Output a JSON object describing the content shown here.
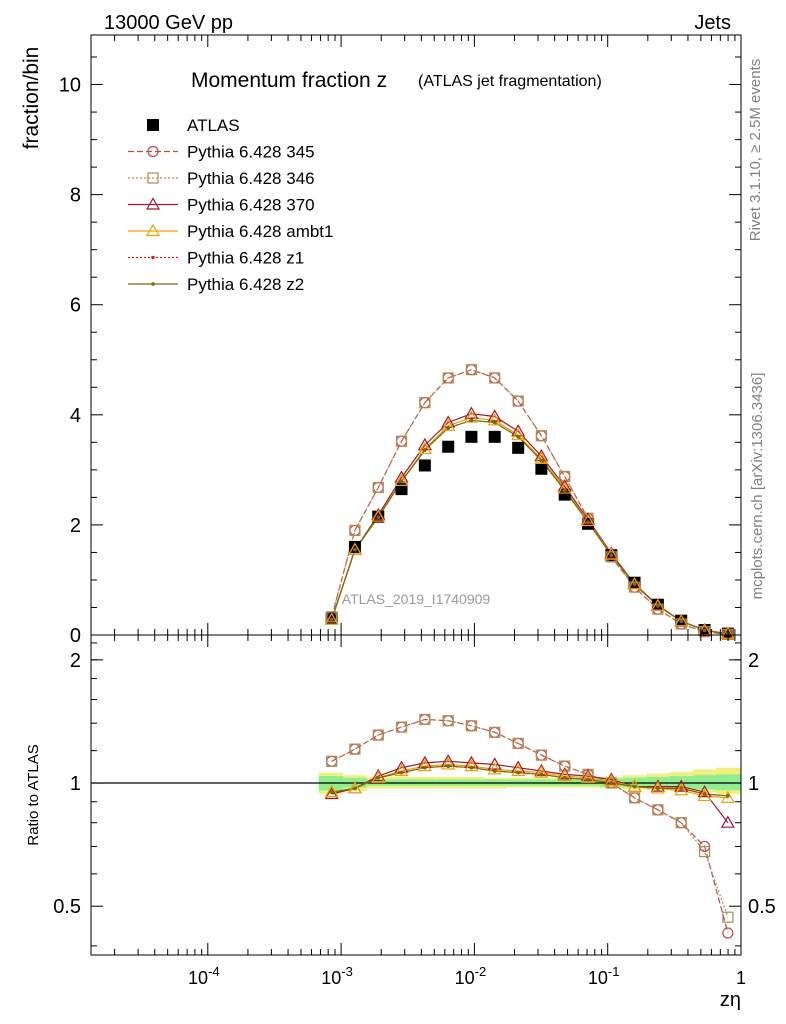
{
  "header": {
    "left": "13000 GeV pp",
    "right": "Jets",
    "side_top": "Rivet 3.1.10, ≥ 2.5M events",
    "side_bottom": "mcplots.cern.ch [arXiv:1306.3436]",
    "watermark": "ATLAS_2019_I1740909"
  },
  "chart_data": [
    {
      "type": "line",
      "title": "Momentum fraction z",
      "subtitle": "(ATLAS jet fragmentation)",
      "ylabel": "fraction/bin",
      "xlabel": "zη",
      "xscale": "log",
      "xlim": [
        1.33e-05,
        1
      ],
      "ylim": [
        0,
        10.9
      ],
      "x_ticks": [
        "10^-4",
        "10^-3",
        "10^-2",
        "10^-1",
        "1"
      ],
      "y_ticks": [
        "0",
        "2",
        "4",
        "6",
        "8",
        "10"
      ],
      "legend_position": "top-left",
      "x": [
        0.00085,
        0.00127,
        0.0019,
        0.00284,
        0.00425,
        0.00636,
        0.0095,
        0.0142,
        0.0213,
        0.0318,
        0.0476,
        0.0712,
        0.1065,
        0.159,
        0.238,
        0.356,
        0.533,
        0.797
      ],
      "series": [
        {
          "name": "ATLAS",
          "color": "#000000",
          "marker": "square-filled",
          "values": [
            0.3,
            1.6,
            2.15,
            2.65,
            3.08,
            3.42,
            3.6,
            3.6,
            3.4,
            3.02,
            2.55,
            2.02,
            1.45,
            0.95,
            0.55,
            0.26,
            0.09,
            0.025
          ]
        },
        {
          "name": "Pythia 6.428 345",
          "color": "#c04848",
          "marker": "circle-open",
          "dash": "6,3",
          "values": [
            0.33,
            1.9,
            2.68,
            3.52,
            4.22,
            4.67,
            4.82,
            4.67,
            4.25,
            3.62,
            2.88,
            2.12,
            1.42,
            0.87,
            0.47,
            0.2,
            0.06,
            0.012
          ]
        },
        {
          "name": "Pythia 6.428 346",
          "color": "#b08a50",
          "marker": "square-open",
          "dash": "2,2",
          "values": [
            0.33,
            1.9,
            2.68,
            3.52,
            4.22,
            4.67,
            4.82,
            4.67,
            4.25,
            3.62,
            2.88,
            2.12,
            1.42,
            0.87,
            0.47,
            0.2,
            0.06,
            0.012
          ]
        },
        {
          "name": "Pythia 6.428 370",
          "color": "#a01830",
          "marker": "triangle-open",
          "dash": "",
          "values": [
            0.28,
            1.55,
            2.18,
            2.86,
            3.45,
            3.86,
            4.02,
            3.97,
            3.7,
            3.25,
            2.7,
            2.1,
            1.48,
            0.93,
            0.54,
            0.25,
            0.09,
            0.02
          ]
        },
        {
          "name": "Pythia 6.428 ambt1",
          "color": "#f0a000",
          "marker": "triangle-open",
          "dash": "",
          "values": [
            0.28,
            1.55,
            2.15,
            2.8,
            3.38,
            3.8,
            3.95,
            3.9,
            3.63,
            3.2,
            2.66,
            2.07,
            1.46,
            0.92,
            0.53,
            0.25,
            0.085,
            0.023
          ]
        },
        {
          "name": "Pythia 6.428 z1",
          "color": "#d02020",
          "marker": "dot",
          "dash": "2,2",
          "values": [
            0.28,
            1.55,
            2.14,
            2.79,
            3.36,
            3.76,
            3.9,
            3.86,
            3.6,
            3.17,
            2.63,
            2.05,
            1.45,
            0.92,
            0.53,
            0.25,
            0.085,
            0.023
          ]
        },
        {
          "name": "Pythia 6.428 z2",
          "color": "#707010",
          "marker": "dot",
          "dash": "",
          "values": [
            0.28,
            1.55,
            2.14,
            2.79,
            3.36,
            3.76,
            3.9,
            3.86,
            3.6,
            3.17,
            2.63,
            2.05,
            1.45,
            0.92,
            0.53,
            0.25,
            0.085,
            0.023
          ]
        }
      ]
    },
    {
      "type": "line",
      "ylabel": "Ratio to ATLAS",
      "xlabel": "zη",
      "xscale": "log",
      "yscale": "log",
      "xlim": [
        1.33e-05,
        1
      ],
      "ylim": [
        0.38,
        2.3
      ],
      "y_ticks": [
        "0.5",
        "1",
        "2"
      ],
      "band": {
        "x_edges": [
          0.00068,
          0.00104,
          0.00156,
          0.00233,
          0.00349,
          0.00522,
          0.0078,
          0.0117,
          0.0175,
          0.026,
          0.039,
          0.058,
          0.087,
          0.13,
          0.195,
          0.29,
          0.435,
          0.65,
          1.0
        ],
        "inner_lo": [
          0.96,
          0.975,
          0.985,
          0.985,
          0.985,
          0.985,
          0.985,
          0.985,
          0.985,
          0.985,
          0.985,
          0.985,
          0.98,
          0.975,
          0.975,
          0.97,
          0.965,
          0.96
        ],
        "inner_hi": [
          1.04,
          1.03,
          1.02,
          1.02,
          1.02,
          1.02,
          1.02,
          1.02,
          1.02,
          1.02,
          1.02,
          1.02,
          1.025,
          1.03,
          1.035,
          1.04,
          1.045,
          1.05
        ],
        "outer_lo": [
          0.94,
          0.955,
          0.97,
          0.97,
          0.97,
          0.97,
          0.97,
          0.97,
          0.975,
          0.975,
          0.975,
          0.975,
          0.97,
          0.965,
          0.96,
          0.955,
          0.95,
          0.94
        ],
        "outer_hi": [
          1.06,
          1.045,
          1.035,
          1.035,
          1.035,
          1.035,
          1.035,
          1.03,
          1.03,
          1.03,
          1.03,
          1.03,
          1.035,
          1.045,
          1.055,
          1.065,
          1.08,
          1.09
        ],
        "inner_color": "#90ee90",
        "outer_color": "#f0f080"
      },
      "series": [
        {
          "name": "Pythia 6.428 345",
          "values": [
            1.13,
            1.21,
            1.31,
            1.37,
            1.43,
            1.42,
            1.38,
            1.33,
            1.25,
            1.17,
            1.1,
            1.05,
            1.0,
            0.92,
            0.86,
            0.8,
            0.7,
            0.43
          ]
        },
        {
          "name": "Pythia 6.428 346",
          "values": [
            1.13,
            1.21,
            1.31,
            1.37,
            1.43,
            1.42,
            1.38,
            1.33,
            1.25,
            1.17,
            1.1,
            1.05,
            1.0,
            0.92,
            0.86,
            0.8,
            0.68,
            0.47
          ]
        },
        {
          "name": "Pythia 6.428 370",
          "values": [
            0.94,
            0.97,
            1.04,
            1.09,
            1.12,
            1.13,
            1.12,
            1.11,
            1.09,
            1.07,
            1.05,
            1.04,
            1.02,
            0.98,
            0.98,
            0.98,
            0.95,
            0.8
          ]
        },
        {
          "name": "Pythia 6.428 ambt1",
          "values": [
            0.95,
            0.97,
            1.03,
            1.07,
            1.1,
            1.11,
            1.1,
            1.08,
            1.07,
            1.06,
            1.04,
            1.03,
            1.01,
            0.98,
            0.97,
            0.96,
            0.93,
            0.92
          ]
        },
        {
          "name": "Pythia 6.428 z1",
          "values": [
            0.95,
            0.97,
            1.03,
            1.06,
            1.09,
            1.1,
            1.09,
            1.07,
            1.06,
            1.05,
            1.03,
            1.02,
            1.0,
            0.98,
            0.97,
            0.97,
            0.94,
            0.93
          ]
        },
        {
          "name": "Pythia 6.428 z2",
          "values": [
            0.95,
            0.97,
            1.03,
            1.06,
            1.09,
            1.1,
            1.09,
            1.07,
            1.06,
            1.05,
            1.03,
            1.02,
            1.0,
            0.98,
            0.97,
            0.97,
            0.94,
            0.93
          ]
        }
      ]
    }
  ]
}
